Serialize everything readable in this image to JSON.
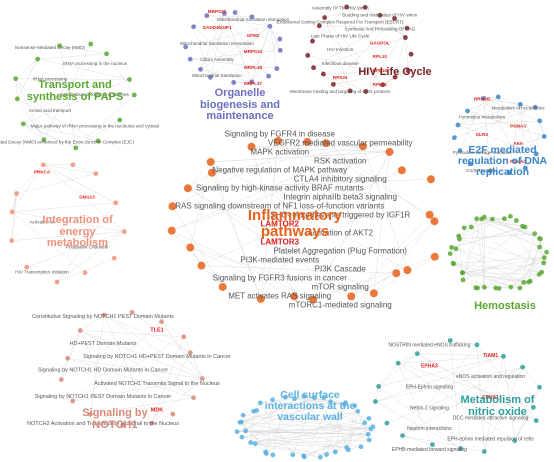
{
  "clusters": [
    {
      "title": "Transport and synthesis of PAPS",
      "nodes": [
        "Nonsense-Mediated Decay (NMD)",
        "tRNA processing in the nucleus",
        "rRNA processing",
        "Metabolism of folate and pterines",
        "Amino acid transport",
        "Major pathway of rRNA processing in the nucleolus and cytosol",
        "Nonsense Mediated Decay (NMD) enhanced by the Exon Junction Complex (EJC)"
      ]
    },
    {
      "title": "Organelle biogenesis and maintenance",
      "nodes": [
        "MRPS22",
        "Mitochondrial translation elongation",
        "GADD45GIP1",
        "GFM2",
        "Mitochondrial translation termination",
        "MRPS34",
        "Cilium Assembly",
        "MRPL45",
        "Mitochondrial translation",
        "MRPL37"
      ]
    },
    {
      "title": "HIV Life Cycle",
      "nodes": [
        "Assembly Of The HIV Virion",
        "Budding and maturation of HIV virion",
        "Endosomal Sorting Complex Required For Transport (ESCRT)",
        "Synthesis And Processing Of GAG",
        "Late Phase of HIV Life Cycle",
        "GAGPOL",
        "HIV Infection",
        "RPL10",
        "Infectious disease",
        "RPL15",
        "RPS24",
        "RPL31",
        "Membrane binding and targeting of GAG proteins"
      ]
    },
    {
      "title": "E2F mediated regulation of DNA replication",
      "nodes": [
        "RRM2B",
        "Metabolism of nucleotides",
        "Pyrimidine metabolism",
        "PSMA3",
        "GLRX",
        "AK9",
        "Pyrimidine salvage reactions",
        "PSMA4",
        "G1/S Transition"
      ]
    },
    {
      "title": "Inflammatory pathways",
      "nodes": [
        "Signaling by FGFR4 in disease",
        "VEGFR2 mediated vascular permeability",
        "MAPK activation",
        "RSK activation",
        "Negative regulation of MAPK pathway",
        "CTLA4 inhibitory signaling",
        "Signaling by high-kinase activity BRAF mutants",
        "Integrin alphaIIb beta3 signaling",
        "RAS signaling downstream of NF1 loss-of-function variants",
        "SHC-related events triggered by IGF1R",
        "LAMTOR2",
        "Activation of AKT2",
        "LAMTOR3",
        "Platelet Aggregation (Plug Formation)",
        "PI3K-mediated events",
        "PI3K Cascade",
        "Signaling by FGFR3 fusions in cancer",
        "mTOR signaling",
        "MET activates RAS signaling",
        "mTORC1-mediated signaling"
      ]
    },
    {
      "title": "Integration of energy metabolism",
      "nodes": [
        "PRKCA",
        "GNG13",
        "Activation of",
        "Potassium Channels",
        "HIV Transcription Initiation"
      ]
    },
    {
      "title": "Hemostasis",
      "nodes": []
    },
    {
      "title": "Signaling by NOTCH1",
      "nodes": [
        "Constitutive Signaling by NOTCH1 PEST Domain Mutants",
        "TLE1",
        "HD+PEST Domain Mutants",
        "Signaling by NOTCH1 HD+PEST Domain Mutants in Cancer",
        "Signaling by NOTCH1 HD Domain Mutants in Cancer",
        "Activated NOTCH1 Transmits Signal to the Nucleus",
        "Signaling by NOTCH1 PEST Domain Mutants in Cancer",
        "MDK",
        "NOTCH2 Activation and Transmission of Signal to the Nucleus"
      ]
    },
    {
      "title": "Cell surface interactions at the vascular wall",
      "nodes": []
    },
    {
      "title": "Metabolism of nitric oxide",
      "nodes": [
        "NOSTRIN mediated eNOS trafficking",
        "TIAM1",
        "EPHA3",
        "eNOS activation and regulation",
        "EPH-Ephrin signaling",
        "EPHA1",
        "Netrin-1 signaling",
        "DCC mediated attractive signaling",
        "Nephrin interactions",
        "EPH-ephrin mediated repulsion of cells",
        "EPHB-mediated forward signaling"
      ]
    }
  ]
}
